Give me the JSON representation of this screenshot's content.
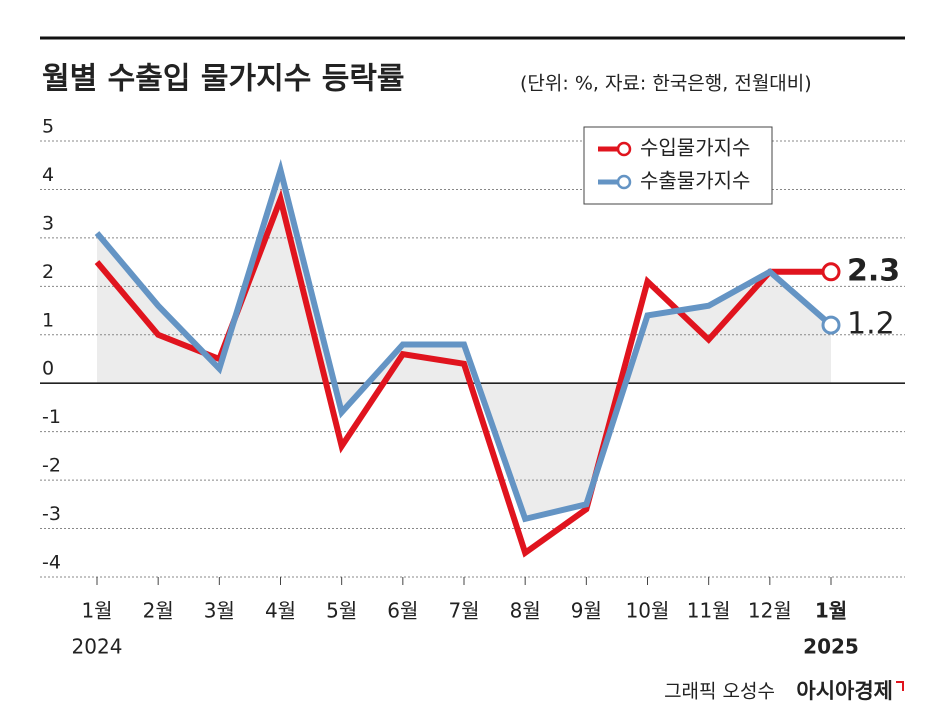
{
  "chart_data": {
    "type": "line",
    "title": "월별 수출입 물가지수 등락률",
    "subtitle": "(단위: %, 자료: 한국은행, 전월대비)",
    "categories": [
      "1월",
      "2월",
      "3월",
      "4월",
      "5월",
      "6월",
      "7월",
      "8월",
      "9월",
      "10월",
      "11월",
      "12월",
      "1월"
    ],
    "category_years": [
      "2024",
      null,
      null,
      null,
      null,
      null,
      null,
      null,
      null,
      null,
      null,
      null,
      "2025"
    ],
    "series": [
      {
        "name": "수입물가지수",
        "color": "#e0141e",
        "values": [
          2.5,
          1.0,
          0.5,
          3.8,
          -1.3,
          0.6,
          0.4,
          -3.5,
          -2.6,
          2.1,
          0.9,
          2.3,
          2.3
        ]
      },
      {
        "name": "수출물가지수",
        "color": "#6494c4",
        "values": [
          3.1,
          1.6,
          0.3,
          4.4,
          -0.6,
          0.8,
          0.8,
          -2.8,
          -2.5,
          1.4,
          1.6,
          2.3,
          1.2
        ]
      }
    ],
    "area_color": "#ececec",
    "ylim": [
      -4,
      5
    ],
    "yticks": [
      -4,
      -3,
      -2,
      -1,
      0,
      1,
      2,
      3,
      4,
      5
    ],
    "grid": true,
    "legend": "upper right",
    "credit": "그래픽 오성수",
    "publisher": "아시아경제"
  }
}
